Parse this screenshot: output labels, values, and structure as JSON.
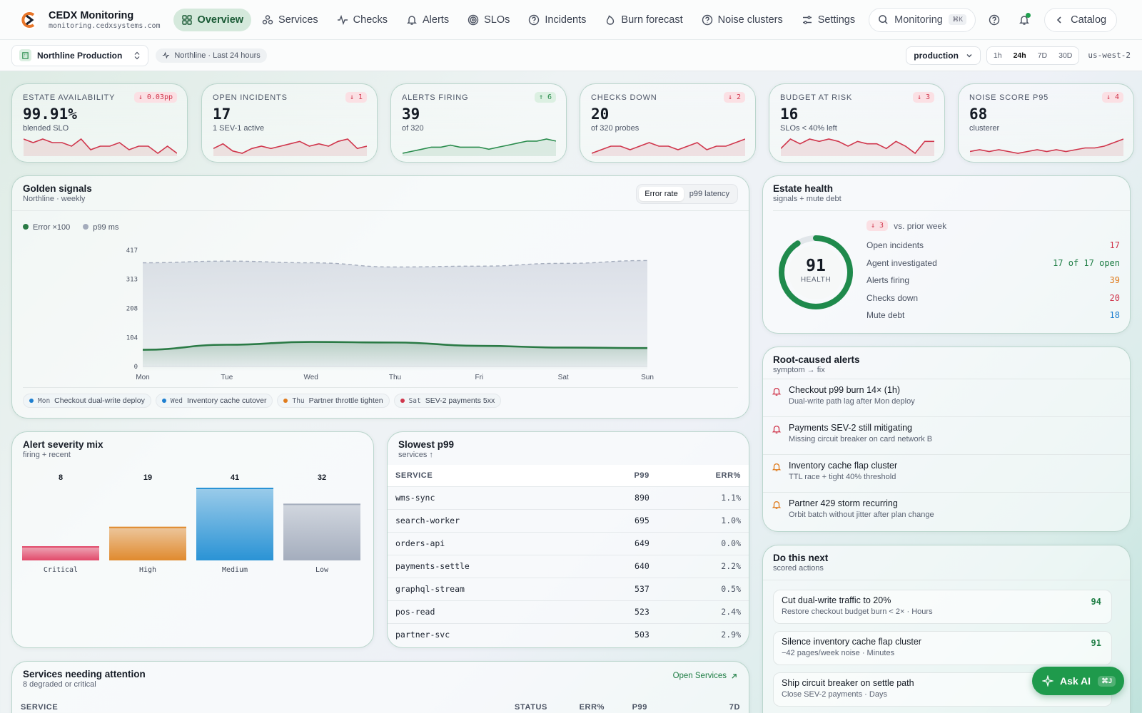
{
  "brand": {
    "name": "CEDX Monitoring",
    "domain": "monitoring.cedxsystems.com"
  },
  "nav": [
    {
      "label": "Overview",
      "icon": "grid-icon",
      "active": true
    },
    {
      "label": "Services",
      "icon": "services-icon"
    },
    {
      "label": "Checks",
      "icon": "pulse-icon"
    },
    {
      "label": "Alerts",
      "icon": "bell-icon"
    },
    {
      "label": "SLOs",
      "icon": "target-icon"
    },
    {
      "label": "Incidents",
      "icon": "help-circle-icon"
    },
    {
      "label": "Burn forecast",
      "icon": "flame-icon"
    },
    {
      "label": "Noise clusters",
      "icon": "question-icon"
    },
    {
      "label": "Settings",
      "icon": "sliders-icon"
    }
  ],
  "search": {
    "label": "Monitoring",
    "shortcut": "⌘K"
  },
  "catalog_label": "Catalog",
  "subbar": {
    "env": "Northline Production",
    "context": "Northline · Last 24 hours",
    "select": "production",
    "ranges": [
      "1h",
      "24h",
      "7D",
      "30D"
    ],
    "active_range": "24h",
    "region": "us-west-2"
  },
  "kpis": [
    {
      "label": "ESTATE AVAILABILITY",
      "value": "99.91%",
      "sub": "blended SLO",
      "delta": "↓ 0.03pp",
      "dir": "down",
      "color": "#d0364c",
      "spark": [
        6,
        5,
        6,
        5,
        5,
        4,
        6,
        3,
        4,
        4,
        5,
        3,
        4,
        4,
        2,
        4,
        2
      ]
    },
    {
      "label": "OPEN INCIDENTS",
      "value": "17",
      "sub": "1 SEV-1 active",
      "delta": "↓ 1",
      "dir": "down",
      "color": "#d0364c",
      "spark": [
        4,
        6,
        3,
        2,
        4,
        5,
        4,
        5,
        6,
        7,
        5,
        6,
        5,
        7,
        8,
        4,
        5
      ]
    },
    {
      "label": "ALERTS FIRING",
      "value": "39",
      "sub": "of 320",
      "delta": "↑ 6",
      "dir": "up",
      "color": "#2a8c4d",
      "spark": [
        2,
        3,
        4,
        5,
        5,
        6,
        5,
        5,
        5,
        4,
        5,
        6,
        7,
        8,
        8,
        9,
        8
      ]
    },
    {
      "label": "CHECKS DOWN",
      "value": "20",
      "sub": "of 320 probes",
      "delta": "↓ 2",
      "dir": "down",
      "color": "#d0364c",
      "spark": [
        3,
        4,
        5,
        5,
        4,
        5,
        6,
        5,
        5,
        4,
        5,
        6,
        4,
        5,
        5,
        6,
        7
      ]
    },
    {
      "label": "BUDGET AT RISK",
      "value": "16",
      "sub": "SLOs < 40% left",
      "delta": "↓ 3",
      "dir": "down",
      "color": "#d0364c",
      "spark": [
        3,
        7,
        5,
        7,
        6,
        7,
        6,
        4,
        6,
        5,
        5,
        3,
        6,
        4,
        1,
        6,
        6
      ]
    },
    {
      "label": "NOISE SCORE P95",
      "value": "68",
      "sub": "clusterer",
      "delta": "↓ 4",
      "dir": "down",
      "color": "#d0364c",
      "spark": [
        3,
        4,
        3,
        4,
        3,
        2,
        3,
        4,
        3,
        4,
        3,
        4,
        5,
        5,
        6,
        8,
        10
      ]
    }
  ],
  "golden": {
    "title": "Golden signals",
    "sub": "Northline · weekly",
    "toggle": [
      "Error rate",
      "p99 latency"
    ],
    "toggle_active": "Error rate",
    "legend": [
      {
        "name": "Error ×100",
        "color": "#2a7a45"
      },
      {
        "name": "p99 ms",
        "color": "#a4acbc"
      }
    ],
    "chart_data": {
      "type": "area",
      "x": [
        "Mon",
        "Tue",
        "Wed",
        "Thu",
        "Fri",
        "Sat",
        "Sun"
      ],
      "yticks": [
        0,
        104,
        208,
        313,
        417
      ],
      "ylim": [
        0,
        417
      ],
      "series": [
        {
          "name": "p99 ms",
          "values": [
            372,
            378,
            372,
            357,
            360,
            370,
            380
          ]
        },
        {
          "name": "Error ×100",
          "values": [
            60,
            78,
            88,
            86,
            74,
            68,
            66
          ]
        }
      ]
    },
    "events": [
      {
        "day": "Mon",
        "label": "Checkout dual-write deploy",
        "color": "#1e7fd0"
      },
      {
        "day": "Wed",
        "label": "Inventory cache cutover",
        "color": "#1e7fd0"
      },
      {
        "day": "Thu",
        "label": "Partner throttle tighten",
        "color": "#e07b1c"
      },
      {
        "day": "Sat",
        "label": "SEV-2 payments 5xx",
        "color": "#d0364c"
      }
    ]
  },
  "health": {
    "title": "Estate health",
    "sub": "signals + mute debt",
    "score": "91",
    "score_label": "HEALTH",
    "score_fraction": 0.91,
    "delta": "↓ 3",
    "delta_label": "vs. prior week",
    "rows": [
      {
        "label": "Open incidents",
        "value": "17",
        "color": "#d0364c"
      },
      {
        "label": "Agent investigated",
        "value": "17 of 17 open",
        "color": "#1e7d44"
      },
      {
        "label": "Alerts firing",
        "value": "39",
        "color": "#e07b1c"
      },
      {
        "label": "Checks down",
        "value": "20",
        "color": "#d0364c"
      },
      {
        "label": "Mute debt",
        "value": "18",
        "color": "#1e7fd0"
      }
    ]
  },
  "rootcause": {
    "title": "Root-caused alerts",
    "sub": "symptom → fix",
    "items": [
      {
        "title": "Checkout p99 burn 14× (1h)",
        "sub": "Dual-write path lag after Mon deploy",
        "color": "#d0364c"
      },
      {
        "title": "Payments SEV-2 still mitigating",
        "sub": "Missing circuit breaker on card network B",
        "color": "#d0364c"
      },
      {
        "title": "Inventory cache flap cluster",
        "sub": "TTL race + tight 40% threshold",
        "color": "#e07b1c"
      },
      {
        "title": "Partner 429 storm recurring",
        "sub": "Orbit batch without jitter after plan change",
        "color": "#e07b1c"
      }
    ]
  },
  "severity": {
    "title": "Alert severity mix",
    "sub": "firing + recent",
    "chart_data": {
      "type": "bar",
      "categories": [
        "Critical",
        "High",
        "Medium",
        "Low"
      ],
      "values": [
        8,
        19,
        41,
        32
      ],
      "colors": [
        "#e24a6a",
        "#e08a2e",
        "#2a93d5",
        "#a4adbd"
      ],
      "ylim": [
        0,
        41
      ]
    }
  },
  "slowest": {
    "title": "Slowest p99",
    "sub": "services ↑",
    "cols": [
      "SERVICE",
      "P99",
      "ERR%"
    ],
    "rows": [
      [
        "wms-sync",
        "890",
        "1.1%"
      ],
      [
        "search-worker",
        "695",
        "1.0%"
      ],
      [
        "orders-api",
        "649",
        "0.0%"
      ],
      [
        "payments-settle",
        "640",
        "2.2%"
      ],
      [
        "graphql-stream",
        "537",
        "0.5%"
      ],
      [
        "pos-read",
        "523",
        "2.4%"
      ],
      [
        "partner-svc",
        "503",
        "2.9%"
      ]
    ]
  },
  "attention": {
    "title": "Services needing attention",
    "sub": "8 degraded or critical",
    "link": "Open Services",
    "cols": [
      "SERVICE",
      "STATUS",
      "ERR%",
      "P99",
      "7D"
    ]
  },
  "next": {
    "title": "Do this next",
    "sub": "scored actions",
    "items": [
      {
        "title": "Cut dual-write traffic to 20%",
        "sub": "Restore checkout budget burn < 2× · Hours",
        "score": "94"
      },
      {
        "title": "Silence inventory cache flap cluster",
        "sub": "−42 pages/week noise · Minutes",
        "score": "91"
      },
      {
        "title": "Ship circuit breaker on settle path",
        "sub": "Close SEV-2 payments · Days",
        "score": ""
      }
    ]
  },
  "askai": {
    "label": "Ask AI",
    "shortcut": "⌘J"
  }
}
